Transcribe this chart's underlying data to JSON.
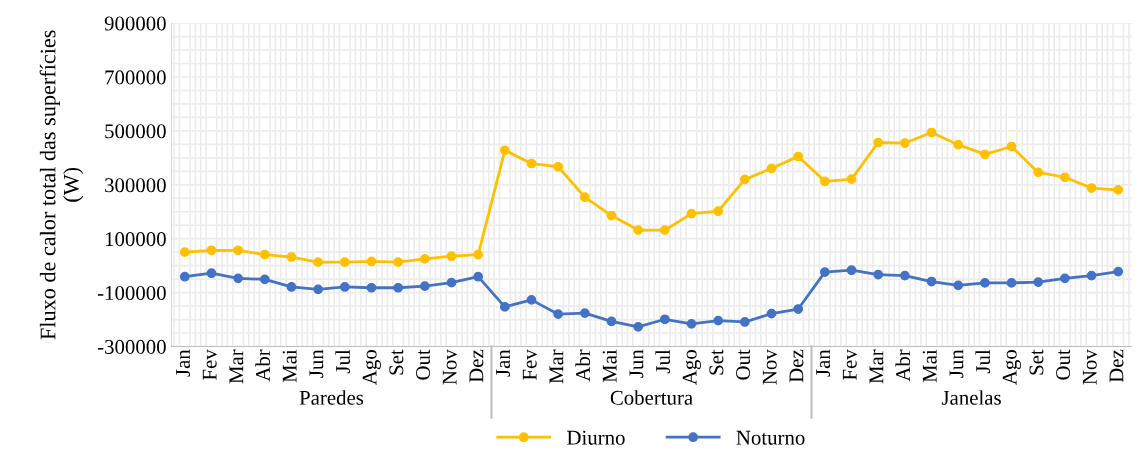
{
  "chart_data": {
    "type": "line",
    "ylabel": "Fluxo de calor total das superfícies\n(W)",
    "categories": [
      "Jan",
      "Fev",
      "Mar",
      "Abr",
      "Mai",
      "Jun",
      "Jul",
      "Ago",
      "Set",
      "Out",
      "Nov",
      "Dez",
      "Jan",
      "Fev",
      "Mar",
      "Abr",
      "Mai",
      "Jun",
      "Jul",
      "Ago",
      "Set",
      "Out",
      "Nov",
      "Dez",
      "Jan",
      "Fev",
      "Mar",
      "Abr",
      "Mai",
      "Jun",
      "Jul",
      "Ago",
      "Set",
      "Out",
      "Nov",
      "Dez"
    ],
    "annotations": [
      "Paredes",
      "Cobertura",
      "Janelas"
    ],
    "series": [
      {
        "name": "Diurno",
        "color": "#ffc000",
        "values": [
          50000,
          57000,
          57000,
          41000,
          32000,
          13000,
          13000,
          16000,
          13000,
          25000,
          35000,
          41000,
          428000,
          379000,
          367000,
          254000,
          186000,
          132000,
          132000,
          193000,
          202000,
          320000,
          361000,
          405000,
          313000,
          321000,
          457000,
          455000,
          494000,
          449000,
          413000,
          442000,
          346000,
          328000,
          288000,
          281000
        ]
      },
      {
        "name": "Noturno",
        "color": "#4472c4",
        "values": [
          -41000,
          -28000,
          -47000,
          -51000,
          -79000,
          -88000,
          -79000,
          -82000,
          -82000,
          -76000,
          -63000,
          -41000,
          -153000,
          -127000,
          -180000,
          -176000,
          -207000,
          -227000,
          -199000,
          -216000,
          -204000,
          -209000,
          -178000,
          -161000,
          -24000,
          -17000,
          -33000,
          -37000,
          -59000,
          -73000,
          -64000,
          -64000,
          -61000,
          -47000,
          -37000,
          -22000
        ]
      }
    ],
    "ylim": [
      -300000,
      900000
    ],
    "yticks": [
      -300000,
      -100000,
      100000,
      300000,
      500000,
      700000,
      900000
    ],
    "grid": true,
    "legend": "bottom",
    "marker": "circle",
    "line_style": "solid"
  }
}
